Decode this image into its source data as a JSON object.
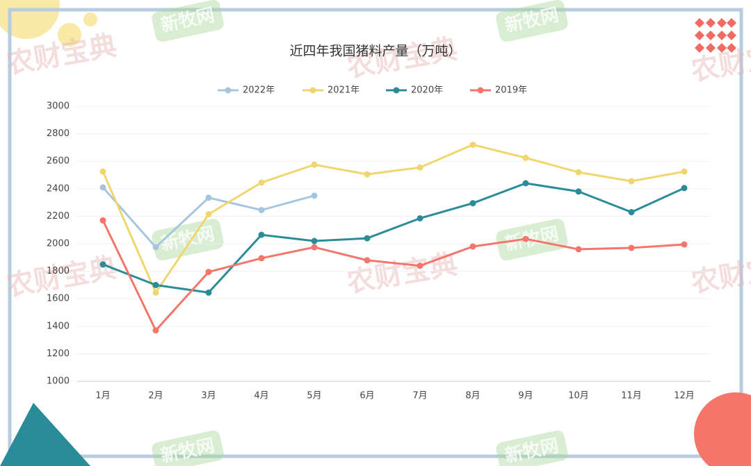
{
  "chart_data": {
    "type": "line",
    "title": "近四年我国猪料产量（万吨）",
    "categories": [
      "1月",
      "2月",
      "3月",
      "4月",
      "5月",
      "6月",
      "7月",
      "8月",
      "9月",
      "10月",
      "11月",
      "12月"
    ],
    "series": [
      {
        "name": "2022年",
        "color": "#a6c6e0",
        "values": [
          2410,
          1975,
          2335,
          2245,
          2350,
          null,
          null,
          null,
          null,
          null,
          null,
          null
        ]
      },
      {
        "name": "2021年",
        "color": "#f0d66e",
        "values": [
          2525,
          1645,
          2215,
          2445,
          2575,
          2505,
          2555,
          2720,
          2625,
          2520,
          2455,
          2525
        ]
      },
      {
        "name": "2020年",
        "color": "#2b8c99",
        "values": [
          1850,
          1700,
          1645,
          2065,
          2020,
          2040,
          2185,
          2295,
          2440,
          2380,
          2230,
          2405
        ]
      },
      {
        "name": "2019年",
        "color": "#f5756b",
        "values": [
          2170,
          1370,
          1795,
          1895,
          1975,
          1880,
          1840,
          1980,
          2035,
          1960,
          1970,
          1995
        ]
      }
    ],
    "ylim": [
      1000,
      3000
    ],
    "yticks": [
      1000,
      1200,
      1400,
      1600,
      1800,
      2000,
      2200,
      2400,
      2600,
      2800,
      3000
    ],
    "grid": true,
    "legend": "top"
  },
  "watermarks": [
    "农财宝典",
    "新牧网"
  ]
}
